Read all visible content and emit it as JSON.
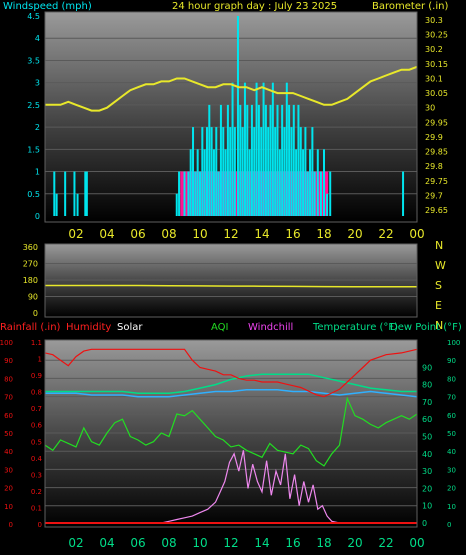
{
  "chart_data": [
    {
      "id": "wind_baro",
      "type": "bar",
      "title": "24 hour graph day : July 23 2025",
      "ylabel_left": "Windspeed (mph)",
      "ylabel_right": "Barometer (.in)",
      "left_ticks": [
        "4.5",
        "4",
        "3.5",
        "3",
        "2.5",
        "2",
        "1.5",
        "1",
        "0.5",
        "0"
      ],
      "right_ticks": [
        "30.3",
        "30.25",
        "30.2",
        "30.15",
        "30.1",
        "30.05",
        "30",
        "29.95",
        "29.9",
        "29.85",
        "29.8",
        "29.75",
        "29.7",
        "29.65"
      ],
      "x_ticks": [
        "02",
        "04",
        "06",
        "08",
        "10",
        "12",
        "14",
        "16",
        "18",
        "20",
        "22",
        "00"
      ],
      "ylim_left": [
        0,
        4.5
      ],
      "ylim_right": [
        29.62,
        30.32
      ],
      "xlim": [
        0,
        24
      ],
      "colors": {
        "windspeed": "#00e5ee",
        "gust": "#ff1493",
        "barometer": "#e8e82a"
      },
      "series": [
        {
          "name": "Barometer",
          "axis": "right",
          "x": [
            0,
            0.5,
            1,
            1.5,
            2,
            2.5,
            3,
            3.5,
            4,
            4.5,
            5,
            5.5,
            6,
            6.5,
            7,
            7.5,
            8,
            8.5,
            9,
            9.5,
            10,
            10.5,
            11,
            11.5,
            12,
            12.5,
            13,
            13.5,
            14,
            14.5,
            15,
            15.5,
            16,
            16.5,
            17,
            17.5,
            18,
            18.5,
            19,
            19.5,
            20,
            20.5,
            21,
            21.5,
            22,
            22.5,
            23,
            23.5,
            24
          ],
          "values": [
            30.01,
            30.01,
            30.01,
            30.02,
            30.01,
            30.0,
            29.99,
            29.99,
            30.0,
            30.02,
            30.04,
            30.06,
            30.07,
            30.08,
            30.08,
            30.09,
            30.09,
            30.1,
            30.1,
            30.09,
            30.08,
            30.07,
            30.07,
            30.08,
            30.08,
            30.07,
            30.07,
            30.06,
            30.07,
            30.06,
            30.05,
            30.05,
            30.05,
            30.04,
            30.03,
            30.02,
            30.01,
            30.01,
            30.02,
            30.03,
            30.05,
            30.07,
            30.09,
            30.1,
            30.11,
            30.12,
            30.13,
            30.13,
            30.14
          ]
        }
      ],
      "gust_bars": [
        {
          "x": 8.95,
          "value": 1.0
        },
        {
          "x": 9.15,
          "value": 1.0
        },
        {
          "x": 9.55,
          "value": 1.0
        },
        {
          "x": 9.75,
          "value": 1.0
        },
        {
          "x": 10.05,
          "value": 1.0
        },
        {
          "x": 10.45,
          "value": 1.0
        },
        {
          "x": 10.85,
          "value": 1.0
        },
        {
          "x": 11.25,
          "value": 1.0
        },
        {
          "x": 11.65,
          "value": 1.0
        },
        {
          "x": 12.05,
          "value": 1.0
        },
        {
          "x": 12.45,
          "value": 1.0
        },
        {
          "x": 12.85,
          "value": 1.0
        },
        {
          "x": 13.25,
          "value": 1.0
        },
        {
          "x": 13.65,
          "value": 1.0
        },
        {
          "x": 14.05,
          "value": 1.0
        },
        {
          "x": 14.45,
          "value": 1.0
        },
        {
          "x": 14.85,
          "value": 1.0
        },
        {
          "x": 15.25,
          "value": 1.0
        },
        {
          "x": 15.65,
          "value": 1.0
        },
        {
          "x": 16.05,
          "value": 1.0
        },
        {
          "x": 16.45,
          "value": 1.0
        },
        {
          "x": 16.85,
          "value": 1.0
        },
        {
          "x": 17.25,
          "value": 1.0
        },
        {
          "x": 17.65,
          "value": 1.0
        },
        {
          "x": 18.05,
          "value": 1.0
        }
      ],
      "wind_bars": [
        {
          "x": 0.6,
          "value": 1.0
        },
        {
          "x": 0.75,
          "value": 0.5
        },
        {
          "x": 1.3,
          "value": 1.0
        },
        {
          "x": 1.9,
          "value": 1.0
        },
        {
          "x": 2.1,
          "value": 0.5
        },
        {
          "x": 2.6,
          "value": 1.0
        },
        {
          "x": 2.7,
          "value": 1.0
        },
        {
          "x": 8.5,
          "value": 0.5
        },
        {
          "x": 8.65,
          "value": 1.0
        },
        {
          "x": 9.0,
          "value": 1.0
        },
        {
          "x": 9.25,
          "value": 1.0
        },
        {
          "x": 9.4,
          "value": 1.5
        },
        {
          "x": 9.55,
          "value": 2.0
        },
        {
          "x": 9.7,
          "value": 1.0
        },
        {
          "x": 9.85,
          "value": 1.5
        },
        {
          "x": 10.0,
          "value": 1.0
        },
        {
          "x": 10.15,
          "value": 2.0
        },
        {
          "x": 10.3,
          "value": 1.5
        },
        {
          "x": 10.45,
          "value": 2.0
        },
        {
          "x": 10.6,
          "value": 2.5
        },
        {
          "x": 10.75,
          "value": 2.0
        },
        {
          "x": 10.9,
          "value": 1.5
        },
        {
          "x": 11.05,
          "value": 2.0
        },
        {
          "x": 11.2,
          "value": 1.0
        },
        {
          "x": 11.35,
          "value": 2.5
        },
        {
          "x": 11.5,
          "value": 2.0
        },
        {
          "x": 11.65,
          "value": 1.5
        },
        {
          "x": 11.8,
          "value": 2.5
        },
        {
          "x": 11.95,
          "value": 2.0
        },
        {
          "x": 12.1,
          "value": 3.0
        },
        {
          "x": 12.25,
          "value": 2.0
        },
        {
          "x": 12.45,
          "value": 4.5
        },
        {
          "x": 12.6,
          "value": 2.5
        },
        {
          "x": 12.75,
          "value": 2.0
        },
        {
          "x": 12.9,
          "value": 3.0
        },
        {
          "x": 13.05,
          "value": 2.5
        },
        {
          "x": 13.2,
          "value": 1.5
        },
        {
          "x": 13.35,
          "value": 2.5
        },
        {
          "x": 13.5,
          "value": 2.0
        },
        {
          "x": 13.65,
          "value": 3.0
        },
        {
          "x": 13.8,
          "value": 2.5
        },
        {
          "x": 13.95,
          "value": 2.0
        },
        {
          "x": 14.1,
          "value": 3.0
        },
        {
          "x": 14.25,
          "value": 2.5
        },
        {
          "x": 14.4,
          "value": 2.0
        },
        {
          "x": 14.55,
          "value": 2.5
        },
        {
          "x": 14.7,
          "value": 3.0
        },
        {
          "x": 14.85,
          "value": 2.0
        },
        {
          "x": 15.0,
          "value": 2.5
        },
        {
          "x": 15.15,
          "value": 1.5
        },
        {
          "x": 15.3,
          "value": 2.5
        },
        {
          "x": 15.45,
          "value": 2.0
        },
        {
          "x": 15.6,
          "value": 3.0
        },
        {
          "x": 15.75,
          "value": 2.5
        },
        {
          "x": 15.9,
          "value": 2.0
        },
        {
          "x": 16.05,
          "value": 2.5
        },
        {
          "x": 16.2,
          "value": 1.5
        },
        {
          "x": 16.35,
          "value": 2.5
        },
        {
          "x": 16.5,
          "value": 2.0
        },
        {
          "x": 16.65,
          "value": 1.5
        },
        {
          "x": 16.8,
          "value": 2.0
        },
        {
          "x": 16.95,
          "value": 1.0
        },
        {
          "x": 17.1,
          "value": 1.5
        },
        {
          "x": 17.25,
          "value": 2.0
        },
        {
          "x": 17.4,
          "value": 1.0
        },
        {
          "x": 17.6,
          "value": 1.5
        },
        {
          "x": 17.8,
          "value": 1.0
        },
        {
          "x": 18.0,
          "value": 1.5
        },
        {
          "x": 18.2,
          "value": 0.5
        },
        {
          "x": 18.4,
          "value": 1.0
        },
        {
          "x": 23.1,
          "value": 1.0
        }
      ]
    },
    {
      "id": "wind_dir",
      "type": "line",
      "left_ticks": [
        "360",
        "270",
        "180",
        "90",
        "0"
      ],
      "right_labels": [
        "N",
        "W",
        "S",
        "E",
        "N"
      ],
      "ylim": [
        0,
        360
      ],
      "xlim": [
        0,
        24
      ],
      "color": "#e8e82a",
      "series": [
        {
          "x": [
            0,
            2,
            4,
            6,
            8,
            10,
            12,
            14,
            16,
            18,
            20,
            22,
            24
          ],
          "values": [
            150,
            150,
            150,
            150,
            149,
            148,
            147,
            146,
            145,
            144,
            143,
            143,
            143
          ]
        }
      ]
    },
    {
      "id": "temp_hum",
      "type": "line",
      "header": [
        "Rainfall (.in)",
        "Humidity",
        "Solar",
        "AQI",
        "Windchill",
        "Temperature (°F)",
        "Dew Point (°F)"
      ],
      "header_colors": [
        "#ff2020",
        "#ff2020",
        "#ffffff",
        "#22dd22",
        "#ee44ee",
        "#00dd88",
        "#00dd88"
      ],
      "left_ticks_humidity": [
        "100",
        "90",
        "80",
        "70",
        "60",
        "50",
        "40",
        "30",
        "20",
        "10",
        "0"
      ],
      "left_ticks_rain": [
        "1.1",
        "1",
        "0.9",
        "0.8",
        "0.7",
        "0.6",
        "0.5",
        "0.4",
        "0.3",
        "0.2",
        "0.1",
        "0"
      ],
      "right_ticks_temp": [
        "90",
        "80",
        "70",
        "60",
        "50",
        "40",
        "30",
        "20",
        "10",
        "0"
      ],
      "right_ticks_outer": [
        "100",
        "90",
        "80",
        "70",
        "60",
        "50",
        "40",
        "30",
        "20",
        "10",
        "0"
      ],
      "x_ticks": [
        "02",
        "04",
        "06",
        "08",
        "10",
        "12",
        "14",
        "16",
        "18",
        "20",
        "22",
        "00"
      ],
      "ylim_humidity": [
        0,
        100
      ],
      "ylim_temp": [
        0,
        100
      ],
      "xlim": [
        0,
        24
      ],
      "colors": {
        "humidity": "#ee1111",
        "dew": "#00dd88",
        "temperature": "#30b0ff",
        "aqi": "#22dd22",
        "solar": "#ee88ee",
        "rain": "#ee1111"
      },
      "series": [
        {
          "name": "Humidity",
          "x": [
            0,
            0.5,
            1,
            1.5,
            2,
            2.5,
            3,
            4,
            5,
            6,
            7,
            8,
            9,
            9.5,
            10,
            10.5,
            11,
            11.5,
            12,
            12.5,
            13,
            13.5,
            14,
            14.5,
            15,
            15.5,
            16,
            16.5,
            17,
            17.5,
            18,
            18.5,
            19,
            19.5,
            20,
            20.5,
            21,
            22,
            23,
            24
          ],
          "values": [
            94,
            93,
            90,
            87,
            92,
            95,
            96,
            96,
            96,
            96,
            96,
            96,
            96,
            90,
            86,
            85,
            84,
            82,
            82,
            80,
            79,
            79,
            78,
            78,
            78,
            77,
            76,
            75,
            73,
            71,
            70,
            72,
            74,
            78,
            82,
            86,
            90,
            93,
            94,
            96
          ]
        },
        {
          "name": "Dew Point",
          "x": [
            0,
            1,
            2,
            3,
            4,
            5,
            6,
            7,
            8,
            9,
            10,
            11,
            12,
            13,
            14,
            15,
            16,
            17,
            18,
            19,
            20,
            21,
            22,
            23,
            24
          ],
          "values": [
            76,
            76,
            76,
            76,
            76,
            76,
            75,
            75,
            75,
            76,
            78,
            80,
            83,
            85,
            86,
            86,
            86,
            86,
            84,
            82,
            80,
            78,
            77,
            76,
            76
          ]
        },
        {
          "name": "Temperature",
          "x": [
            0,
            1,
            2,
            3,
            4,
            5,
            6,
            7,
            8,
            9,
            10,
            11,
            12,
            13,
            14,
            15,
            16,
            17,
            18,
            19,
            20,
            21,
            22,
            23,
            24
          ],
          "values": [
            75,
            75,
            75,
            74,
            74,
            74,
            73,
            73,
            73,
            74,
            75,
            76,
            76,
            77,
            77,
            77,
            76,
            76,
            75,
            74,
            75,
            76,
            75,
            74,
            73
          ]
        },
        {
          "name": "AQI",
          "x": [
            0,
            0.5,
            1,
            1.5,
            2,
            2.5,
            3,
            3.5,
            4,
            4.5,
            5,
            5.5,
            6,
            6.5,
            7,
            7.5,
            8,
            8.5,
            9,
            9.5,
            10,
            10.5,
            11,
            11.5,
            12,
            12.5,
            13,
            13.5,
            14,
            14.5,
            15,
            15.5,
            16,
            16.5,
            17,
            17.5,
            18,
            18.5,
            19,
            19.5,
            20,
            20.5,
            21,
            21.5,
            22,
            22.5,
            23,
            23.5,
            24
          ],
          "values": [
            45,
            42,
            48,
            46,
            44,
            55,
            47,
            45,
            52,
            58,
            60,
            50,
            48,
            45,
            47,
            52,
            50,
            63,
            62,
            65,
            60,
            55,
            50,
            48,
            44,
            45,
            42,
            40,
            38,
            46,
            42,
            41,
            40,
            45,
            43,
            36,
            33,
            40,
            45,
            72,
            62,
            60,
            57,
            55,
            58,
            60,
            62,
            60,
            63
          ]
        },
        {
          "name": "Solar",
          "x": [
            0,
            6,
            6.5,
            7,
            7.5,
            8,
            8.5,
            9,
            9.5,
            10,
            10.5,
            11,
            11.3,
            11.6,
            11.9,
            12.2,
            12.5,
            12.8,
            13.1,
            13.4,
            13.7,
            14.0,
            14.3,
            14.6,
            14.9,
            15.2,
            15.5,
            15.8,
            16.1,
            16.4,
            16.7,
            17.0,
            17.3,
            17.6,
            17.9,
            18.2,
            18.5,
            19,
            24
          ],
          "values": [
            0,
            0,
            0,
            0,
            0,
            1,
            2,
            3,
            4,
            6,
            8,
            12,
            18,
            24,
            35,
            40,
            30,
            42,
            20,
            34,
            24,
            18,
            36,
            16,
            30,
            22,
            40,
            14,
            28,
            10,
            24,
            12,
            22,
            8,
            10,
            4,
            1,
            0,
            0
          ]
        },
        {
          "name": "Rainfall",
          "x": [
            0,
            24
          ],
          "values": [
            0,
            0
          ]
        }
      ]
    }
  ]
}
